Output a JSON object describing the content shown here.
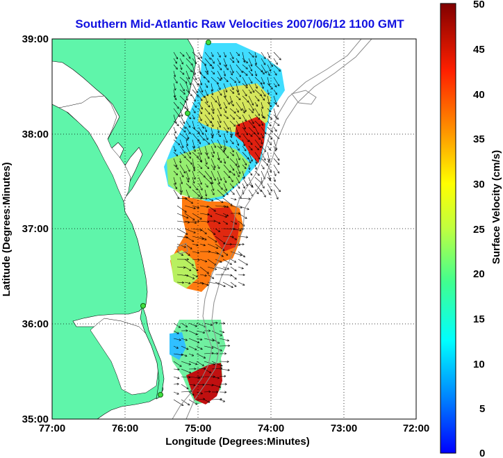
{
  "map": {
    "title": "Southern Mid-Atlantic Raw Velocities 2007/06/12 1100 GMT",
    "title_color": "#1010e0",
    "xlabel": "Longitude (Degrees:Minutes)",
    "ylabel": "Latitude (Degrees:Minutes)",
    "x_ticks": [
      "77:00",
      "76:00",
      "75:00",
      "74:00",
      "73:00",
      "72:00"
    ],
    "y_ticks": [
      "39:00",
      "38:00",
      "37:00",
      "36:00",
      "35:00"
    ],
    "lon_range": [
      -77,
      -72
    ],
    "lat_range": [
      35,
      39
    ],
    "land_color": "#5ff5aa",
    "gridlines": "dotted"
  },
  "colorbar": {
    "label": "Surface Velocity (cm/s)",
    "ticks": [
      "50",
      "45",
      "40",
      "35",
      "30",
      "25",
      "20",
      "15",
      "10",
      "5",
      "0"
    ],
    "range": [
      0,
      50
    ],
    "colormap": "jet"
  }
}
